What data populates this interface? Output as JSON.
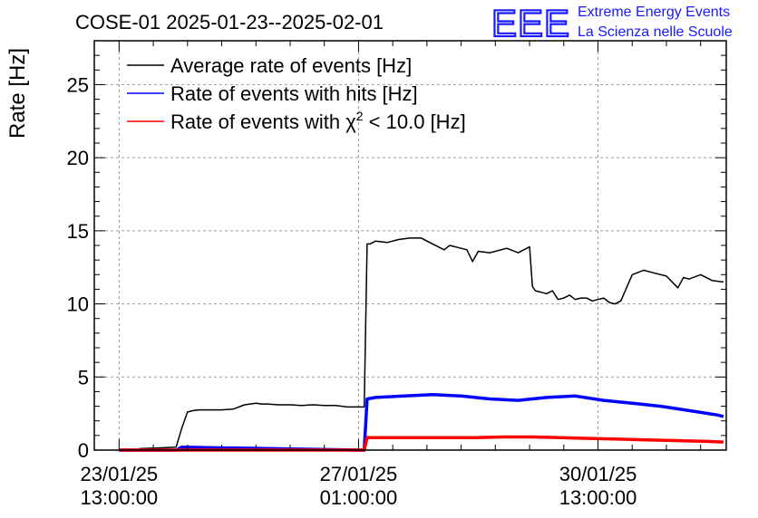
{
  "header": {
    "title": "COSE-01 2025-01-23--2025-02-01",
    "logo_text": "EEE",
    "logo_line1": "Extreme Energy Events",
    "logo_line2": "La Scienza nelle Scuole"
  },
  "colors": {
    "average": "#000000",
    "hits": "#0000ff",
    "chi2": "#ff0000",
    "logo": "#1a1aff",
    "grid": "#9a9a9a"
  },
  "chart_data": {
    "type": "line",
    "title": "COSE-01 2025-01-23--2025-02-01",
    "xlabel": "",
    "ylabel": "Rate [Hz]",
    "x_unit": "hours since 23/01/25 13:00:00",
    "xlim": [
      -8.7,
      213
    ],
    "ylim": [
      0,
      28
    ],
    "grid": true,
    "legend_position": "top-left",
    "x_ticks": [
      {
        "x": 0,
        "line1": "23/01/25",
        "line2": "13:00:00"
      },
      {
        "x": 84,
        "line1": "27/01/25",
        "line2": "01:00:00"
      },
      {
        "x": 168,
        "line1": "30/01/25",
        "line2": "13:00:00"
      }
    ],
    "y_ticks": [
      0,
      5,
      10,
      15,
      20,
      25
    ],
    "series": [
      {
        "name": "Average rate of events [Hz]",
        "key": "average",
        "x": [
          7,
          14,
          20,
          22,
          24,
          26,
          28,
          32,
          36,
          40,
          44,
          48,
          50,
          52,
          56,
          60,
          64,
          68,
          72,
          76,
          80,
          82,
          86,
          87,
          88,
          90,
          94,
          98,
          102,
          106,
          110,
          112,
          114,
          116,
          120,
          122,
          124,
          126,
          130,
          136,
          140,
          144,
          145,
          146,
          148,
          150,
          152,
          154,
          156,
          158,
          160,
          162,
          164,
          166,
          168,
          170,
          172,
          174,
          176,
          180,
          184,
          188,
          192,
          196,
          198,
          200,
          204,
          208,
          212
        ],
        "y": [
          0.1,
          0.15,
          0.2,
          1.5,
          2.6,
          2.7,
          2.75,
          2.75,
          2.75,
          2.8,
          3.1,
          3.2,
          3.15,
          3.15,
          3.1,
          3.1,
          3.05,
          3.1,
          3.05,
          3.05,
          2.95,
          2.95,
          2.95,
          14.1,
          14.1,
          14.3,
          14.2,
          14.4,
          14.5,
          14.5,
          14.1,
          13.9,
          13.7,
          14.0,
          13.8,
          13.7,
          12.9,
          13.6,
          13.5,
          13.8,
          13.5,
          13.9,
          11.2,
          10.9,
          10.8,
          10.7,
          10.9,
          10.3,
          10.4,
          10.6,
          10.3,
          10.4,
          10.4,
          10.2,
          10.3,
          10.4,
          10.1,
          10.0,
          10.2,
          12.0,
          12.3,
          12.1,
          11.9,
          11.1,
          11.8,
          11.7,
          12.0,
          11.6,
          11.5
        ]
      },
      {
        "name": "Rate of events with hits [Hz]",
        "key": "hits",
        "x": [
          0,
          20,
          22,
          84,
          86,
          87,
          90,
          100,
          110,
          120,
          130,
          140,
          150,
          160,
          170,
          180,
          190,
          200,
          210,
          212
        ],
        "y": [
          0.0,
          0.0,
          0.2,
          0.0,
          0.0,
          3.5,
          3.6,
          3.7,
          3.8,
          3.7,
          3.5,
          3.4,
          3.6,
          3.7,
          3.4,
          3.2,
          3.0,
          2.7,
          2.4,
          2.3
        ]
      },
      {
        "name": "Rate of events with χ² < 10.0 [Hz]",
        "key": "chi2",
        "x": [
          0,
          22,
          84,
          86,
          87,
          95,
          105,
          115,
          125,
          135,
          145,
          155,
          165,
          175,
          185,
          195,
          205,
          212
        ],
        "y": [
          0.0,
          0.0,
          0.0,
          0.0,
          0.85,
          0.85,
          0.85,
          0.85,
          0.85,
          0.9,
          0.9,
          0.85,
          0.8,
          0.75,
          0.7,
          0.65,
          0.6,
          0.55
        ]
      }
    ]
  },
  "legend": {
    "average_label": "Average rate of events [Hz]",
    "hits_label": "Rate of events with hits [Hz]",
    "chi2_prefix": "Rate of events with χ",
    "chi2_sup": "2",
    "chi2_suffix": " < 10.0 [Hz]"
  }
}
